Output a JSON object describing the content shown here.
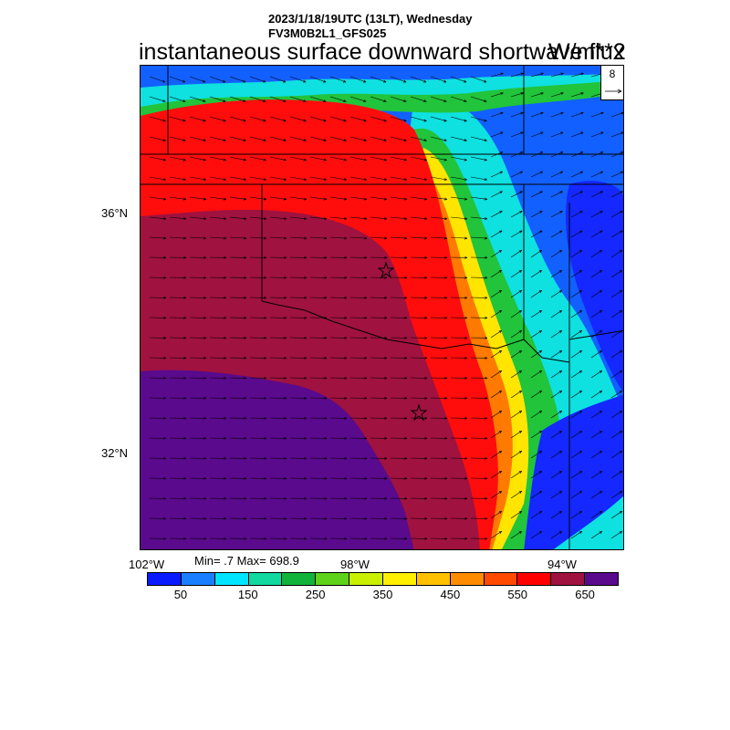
{
  "header": {
    "line1": "2023/1/18/19UTC (13LT), Wednesday",
    "line2": "FV3M0B2L1_GFS025",
    "title": "instantaneous surface downward shortwave flux",
    "units": "W/m**2"
  },
  "reference_vector": {
    "value": "8"
  },
  "axes": {
    "lat_labels": [
      "36°N",
      "32°N"
    ],
    "lon_labels": [
      "102°W",
      "98°W",
      "94°W"
    ]
  },
  "stats": {
    "text": "Min= .7 Max= 698.9"
  },
  "colorbar": {
    "colors": [
      "#0a1aff",
      "#1a7fff",
      "#00e5ff",
      "#12d9a0",
      "#12b33a",
      "#5fd21a",
      "#c8f000",
      "#fff000",
      "#ffc000",
      "#ff8c00",
      "#ff4a00",
      "#ff0000",
      "#a0123f",
      "#5a0a8c"
    ],
    "labels": [
      "50",
      "150",
      "250",
      "350",
      "450",
      "550",
      "650"
    ]
  },
  "field_regions": {
    "palette": {
      "purple": "#5a0a8c",
      "maroon": "#a0123f",
      "red": "#ff0d0d",
      "orange": "#ff7a00",
      "yellow": "#ffe500",
      "green": "#21c43a",
      "cyan": "#0fe0e0",
      "blue": "#1260ff",
      "darkblue": "#1428ff"
    }
  }
}
